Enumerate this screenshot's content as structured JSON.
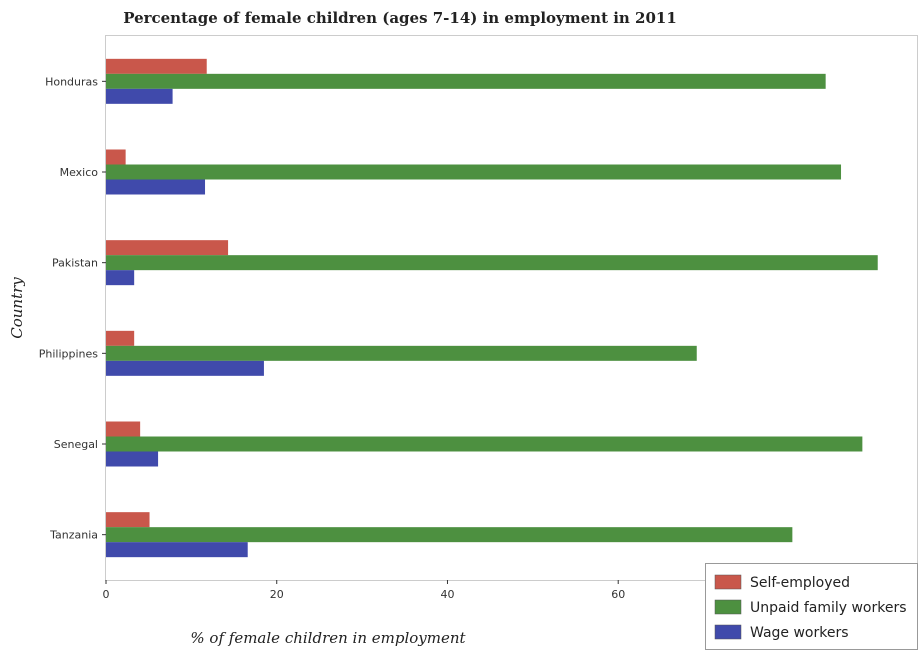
{
  "chart_data": {
    "type": "bar",
    "orientation": "horizontal",
    "title": "Percentage of female children (ages 7-14) in employment in 2011",
    "xlabel": "% of female children in employment",
    "ylabel": "Country",
    "categories": [
      "Honduras",
      "Mexico",
      "Pakistan",
      "Philippines",
      "Senegal",
      "Tanzania"
    ],
    "xlim": [
      0,
      95
    ],
    "xticks": [
      0,
      20,
      40,
      60,
      80
    ],
    "grid": false,
    "legend_position": "bottom-right",
    "series": [
      {
        "name": "Self-employed",
        "color": "#c0392b",
        "values": [
          11.8,
          2.3,
          14.3,
          3.3,
          4.0,
          5.1
        ]
      },
      {
        "name": "Unpaid family workers",
        "color": "#2e7d1e",
        "values": [
          84.3,
          86.1,
          90.4,
          69.2,
          88.6,
          80.4
        ]
      },
      {
        "name": "Wage workers",
        "color": "#1f2a9c",
        "values": [
          7.8,
          11.6,
          3.3,
          18.5,
          6.1,
          16.6
        ]
      }
    ]
  }
}
